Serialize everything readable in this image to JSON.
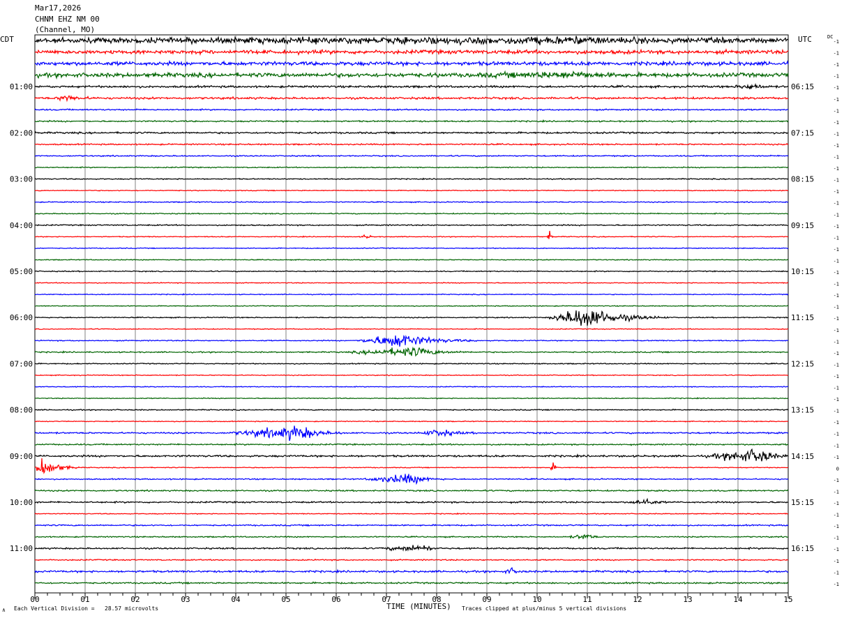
{
  "header": {
    "date": "Mar17,2026",
    "station": "CHNM EHZ NM 00",
    "channel": "(Channel, MO)"
  },
  "left_tz": "CDT",
  "right_tz": "UTC",
  "dc_label": "DC",
  "footer": {
    "corner_mark": "∧",
    "division": "Each Vertical Division =   28.57 microvolts",
    "clip": "Traces clipped at plus/minus 5 vertical divisions"
  },
  "colors": {
    "black": "#000000",
    "red": "#ff0000",
    "blue": "#0000ff",
    "green": "#006400",
    "grid": "#808080"
  },
  "chart_data": {
    "type": "line",
    "title": "Mar17,2026",
    "xlabel": "TIME (MINUTES)",
    "ylabel": "",
    "xlim": [
      0,
      15
    ],
    "x_tick_labels": [
      "00",
      "01",
      "02",
      "03",
      "04",
      "05",
      "06",
      "07",
      "08",
      "09",
      "10",
      "11",
      "12",
      "13",
      "14",
      "15"
    ],
    "trace_count": 48,
    "trace_color_cycle": [
      "black",
      "red",
      "blue",
      "green"
    ],
    "left_time_labels": [
      {
        "trace": 4,
        "label": "01:00"
      },
      {
        "trace": 8,
        "label": "02:00"
      },
      {
        "trace": 12,
        "label": "03:00"
      },
      {
        "trace": 16,
        "label": "04:00"
      },
      {
        "trace": 20,
        "label": "05:00"
      },
      {
        "trace": 24,
        "label": "06:00"
      },
      {
        "trace": 28,
        "label": "07:00"
      },
      {
        "trace": 32,
        "label": "08:00"
      },
      {
        "trace": 36,
        "label": "09:00"
      },
      {
        "trace": 40,
        "label": "10:00"
      },
      {
        "trace": 44,
        "label": "11:00"
      }
    ],
    "right_time_labels": [
      {
        "trace": 4,
        "label": "06:15"
      },
      {
        "trace": 8,
        "label": "07:15"
      },
      {
        "trace": 12,
        "label": "08:15"
      },
      {
        "trace": 16,
        "label": "09:15"
      },
      {
        "trace": 20,
        "label": "10:15"
      },
      {
        "trace": 24,
        "label": "11:15"
      },
      {
        "trace": 28,
        "label": "12:15"
      },
      {
        "trace": 32,
        "label": "13:15"
      },
      {
        "trace": 36,
        "label": "14:15"
      },
      {
        "trace": 40,
        "label": "15:15"
      },
      {
        "trace": 44,
        "label": "16:15"
      }
    ],
    "dc_offsets": [
      "-1",
      "-1",
      "-1",
      "-1",
      "-1",
      "-1",
      "-1",
      "-1",
      "-1",
      "-1",
      "-1",
      "-1",
      "-1",
      "-1",
      "-1",
      "-1",
      "-1",
      "-1",
      "-1",
      "-1",
      "-1",
      "-1",
      "-1",
      "-1",
      "-1",
      "-1",
      "-1",
      "-1",
      "-1",
      "-1",
      "-1",
      "-1",
      "-1",
      "-1",
      "-1",
      "-1",
      "-1",
      "0",
      "-1",
      "-1",
      "-1",
      "-1",
      "-1",
      "-1",
      "-1",
      "-1",
      "-1",
      "-1"
    ],
    "noise_level": [
      0.28,
      0.22,
      0.22,
      0.24,
      0.12,
      0.12,
      0.08,
      0.08,
      0.1,
      0.08,
      0.07,
      0.06,
      0.06,
      0.05,
      0.06,
      0.06,
      0.07,
      0.05,
      0.05,
      0.05,
      0.06,
      0.05,
      0.05,
      0.05,
      0.06,
      0.05,
      0.06,
      0.07,
      0.06,
      0.05,
      0.05,
      0.05,
      0.06,
      0.05,
      0.09,
      0.08,
      0.11,
      0.05,
      0.07,
      0.08,
      0.09,
      0.05,
      0.08,
      0.07,
      0.09,
      0.07,
      0.11,
      0.09
    ],
    "events": [
      {
        "trace": 0,
        "start_min": 0.0,
        "end_min": 15.0,
        "peak_min": 11.0,
        "amplitude": 0.2
      },
      {
        "trace": 3,
        "start_min": 8.5,
        "end_min": 11.6,
        "peak_min": 10.9,
        "amplitude": 0.25
      },
      {
        "trace": 4,
        "start_min": 13.9,
        "end_min": 14.7,
        "peak_min": 14.3,
        "amplitude": 0.35
      },
      {
        "trace": 5,
        "start_min": 0.4,
        "end_min": 1.2,
        "peak_min": 0.6,
        "amplitude": 0.35
      },
      {
        "trace": 17,
        "start_min": 6.5,
        "end_min": 6.8,
        "peak_min": 6.6,
        "amplitude": 0.3
      },
      {
        "trace": 17,
        "start_min": 10.2,
        "end_min": 10.35,
        "peak_min": 10.25,
        "amplitude": 0.6
      },
      {
        "trace": 24,
        "start_min": 10.2,
        "end_min": 12.6,
        "peak_min": 11.0,
        "amplitude": 1.3
      },
      {
        "trace": 26,
        "start_min": 6.4,
        "end_min": 8.8,
        "peak_min": 7.3,
        "amplitude": 0.9
      },
      {
        "trace": 27,
        "start_min": 6.2,
        "end_min": 8.7,
        "peak_min": 7.6,
        "amplitude": 0.55
      },
      {
        "trace": 34,
        "start_min": 3.8,
        "end_min": 6.2,
        "peak_min": 5.3,
        "amplitude": 0.8
      },
      {
        "trace": 34,
        "start_min": 7.6,
        "end_min": 8.8,
        "peak_min": 8.1,
        "amplitude": 0.4
      },
      {
        "trace": 36,
        "start_min": 13.3,
        "end_min": 15.0,
        "peak_min": 14.5,
        "amplitude": 0.8
      },
      {
        "trace": 37,
        "start_min": 0.0,
        "end_min": 0.9,
        "peak_min": 0.15,
        "amplitude": 1.2
      },
      {
        "trace": 37,
        "start_min": 10.25,
        "end_min": 10.45,
        "peak_min": 10.3,
        "amplitude": 0.6
      },
      {
        "trace": 38,
        "start_min": 6.5,
        "end_min": 8.2,
        "peak_min": 7.5,
        "amplitude": 0.6
      },
      {
        "trace": 40,
        "start_min": 11.8,
        "end_min": 12.6,
        "peak_min": 12.2,
        "amplitude": 0.4
      },
      {
        "trace": 43,
        "start_min": 10.6,
        "end_min": 11.3,
        "peak_min": 11.0,
        "amplitude": 0.35
      },
      {
        "trace": 44,
        "start_min": 6.8,
        "end_min": 8.0,
        "peak_min": 7.8,
        "amplitude": 0.4
      },
      {
        "trace": 46,
        "start_min": 9.3,
        "end_min": 9.8,
        "peak_min": 9.5,
        "amplitude": 0.3
      }
    ]
  }
}
